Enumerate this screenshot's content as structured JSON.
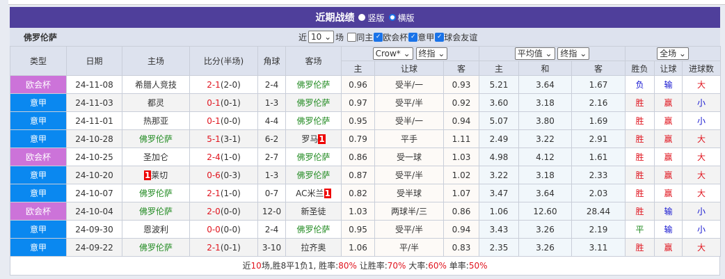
{
  "title": "近期战绩",
  "view_options": [
    {
      "label": "竖版",
      "selected": false
    },
    {
      "label": "横版",
      "selected": true
    }
  ],
  "team": "佛罗伦萨",
  "filters": {
    "prefix": "近",
    "count": "10",
    "suffix": "场",
    "checks": [
      {
        "label": "同主",
        "checked": false
      },
      {
        "label": "欧会杯",
        "checked": true
      },
      {
        "label": "意甲",
        "checked": true
      },
      {
        "label": "球会友谊",
        "checked": true
      }
    ]
  },
  "headers": {
    "type": "类型",
    "date": "日期",
    "home": "主场",
    "score": "比分(半场)",
    "corner": "角球",
    "away": "客场",
    "odds_company": "Crow*",
    "odds_kind": "终指",
    "avg": "平均值",
    "avg_kind": "终指",
    "period": "全场",
    "sub": [
      "主",
      "让球",
      "客",
      "主",
      "和",
      "客",
      "胜负",
      "让球",
      "进球数"
    ]
  },
  "colors": {
    "欧会杯": "#cc73d9",
    "意甲": "#0a88f0",
    "header": "#4f3f9b"
  },
  "rows": [
    {
      "type": "欧会杯",
      "date": "24-11-08",
      "home": "希腊人竞技",
      "home_red": "",
      "score": "2-1",
      "half": "(2-0)",
      "corner": "2-4",
      "away": "佛罗伦萨",
      "away_red": "",
      "h": "0.96",
      "hcp": "受半/一",
      "a": "0.93",
      "w": "5.21",
      "d": "3.64",
      "l": "1.67",
      "res": "负",
      "hres": "输",
      "ou": "大"
    },
    {
      "type": "意甲",
      "date": "24-11-03",
      "home": "都灵",
      "home_red": "",
      "score": "0-1",
      "half": "(0-1)",
      "corner": "1-3",
      "away": "佛罗伦萨",
      "away_red": "",
      "h": "0.97",
      "hcp": "受平/半",
      "a": "0.92",
      "w": "3.60",
      "d": "3.18",
      "l": "2.16",
      "res": "胜",
      "hres": "赢",
      "ou": "小"
    },
    {
      "type": "意甲",
      "date": "24-11-01",
      "home": "热那亚",
      "home_red": "",
      "score": "0-1",
      "half": "(0-0)",
      "corner": "4-4",
      "away": "佛罗伦萨",
      "away_red": "",
      "h": "0.95",
      "hcp": "受半/一",
      "a": "0.94",
      "w": "5.07",
      "d": "3.80",
      "l": "1.69",
      "res": "胜",
      "hres": "赢",
      "ou": "小"
    },
    {
      "type": "意甲",
      "date": "24-10-28",
      "home": "佛罗伦萨",
      "home_red": "",
      "score": "5-1",
      "half": "(3-1)",
      "corner": "6-2",
      "away": "罗马",
      "away_red": "1",
      "h": "0.79",
      "hcp": "平手",
      "a": "1.11",
      "w": "2.49",
      "d": "3.22",
      "l": "2.91",
      "res": "胜",
      "hres": "赢",
      "ou": "大"
    },
    {
      "type": "欧会杯",
      "date": "24-10-25",
      "home": "圣加仑",
      "home_red": "",
      "score": "2-4",
      "half": "(1-0)",
      "corner": "2-7",
      "away": "佛罗伦萨",
      "away_red": "",
      "h": "0.86",
      "hcp": "受一球",
      "a": "1.03",
      "w": "4.98",
      "d": "4.12",
      "l": "1.61",
      "res": "胜",
      "hres": "赢",
      "ou": "大"
    },
    {
      "type": "意甲",
      "date": "24-10-20",
      "home": "莱切",
      "home_red": "1",
      "score": "0-6",
      "half": "(0-3)",
      "corner": "1-3",
      "away": "佛罗伦萨",
      "away_red": "",
      "h": "0.87",
      "hcp": "受平/半",
      "a": "1.02",
      "w": "3.22",
      "d": "3.18",
      "l": "2.33",
      "res": "胜",
      "hres": "赢",
      "ou": "大"
    },
    {
      "type": "意甲",
      "date": "24-10-07",
      "home": "佛罗伦萨",
      "home_red": "",
      "score": "2-1",
      "half": "(1-0)",
      "corner": "0-7",
      "away": "AC米兰",
      "away_red": "1",
      "h": "0.82",
      "hcp": "受半球",
      "a": "1.07",
      "w": "3.47",
      "d": "3.64",
      "l": "2.03",
      "res": "胜",
      "hres": "赢",
      "ou": "大"
    },
    {
      "type": "欧会杯",
      "date": "24-10-04",
      "home": "佛罗伦萨",
      "home_red": "",
      "score": "2-0",
      "half": "(0-0)",
      "corner": "12-0",
      "away": "新圣徒",
      "away_red": "",
      "h": "1.03",
      "hcp": "两球半/三",
      "a": "0.86",
      "w": "1.06",
      "d": "12.60",
      "l": "28.44",
      "res": "胜",
      "hres": "输",
      "ou": "小"
    },
    {
      "type": "意甲",
      "date": "24-09-30",
      "home": "恩波利",
      "home_red": "",
      "score": "0-0",
      "half": "(0-0)",
      "corner": "2-4",
      "away": "佛罗伦萨",
      "away_red": "",
      "h": "0.95",
      "hcp": "受平/半",
      "a": "0.94",
      "w": "3.43",
      "d": "3.26",
      "l": "2.19",
      "res": "平",
      "hres": "输",
      "ou": "小"
    },
    {
      "type": "意甲",
      "date": "24-09-22",
      "home": "佛罗伦萨",
      "home_red": "",
      "score": "2-1",
      "half": "(0-1)",
      "corner": "3-10",
      "away": "拉齐奥",
      "away_red": "",
      "h": "1.06",
      "hcp": "平/半",
      "a": "0.83",
      "w": "2.35",
      "d": "3.26",
      "l": "3.11",
      "res": "胜",
      "hres": "赢",
      "ou": "大"
    }
  ],
  "summary": {
    "p1": "近",
    "n": "10",
    "p2": "场,胜8平1负1, 胜率:",
    "win": "80%",
    "p3": " 让胜率:",
    "hwin": "70%",
    "p4": " 大率:",
    "big": "60%",
    "p5": " 单率:",
    "single": "50%"
  }
}
